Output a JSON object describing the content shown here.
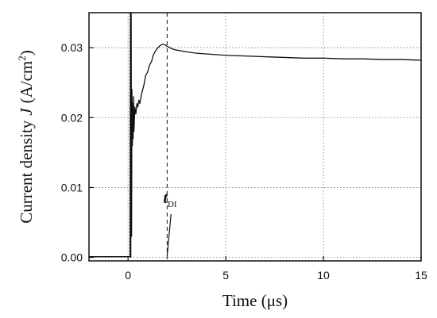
{
  "chart_data": {
    "type": "line",
    "title": "",
    "xlabel": "Time (μs)",
    "ylabel_prefix": "Current density",
    "ylabel_symbol": "J",
    "ylabel_unit_open": "(A/cm",
    "ylabel_unit_sup": "2",
    "ylabel_unit_close": ")",
    "xlim": [
      -2,
      15
    ],
    "ylim": [
      -0.0005,
      0.035
    ],
    "grid": true,
    "x_ticks": [
      0,
      5,
      10,
      15
    ],
    "x_tick_labels": [
      "0",
      "5",
      "10",
      "15"
    ],
    "y_ticks": [
      0.0,
      0.01,
      0.02,
      0.03
    ],
    "y_tick_labels": [
      "0.00",
      "0.01",
      "0.02",
      "0.03"
    ],
    "series": [
      {
        "color": "#111111",
        "x": [
          -2.0,
          -1.0,
          0.0,
          0.05,
          0.1,
          0.12,
          0.14,
          0.16,
          0.18,
          0.2,
          0.22,
          0.24,
          0.26,
          0.28,
          0.3,
          0.35,
          0.4,
          0.45,
          0.5,
          0.55,
          0.6,
          0.7,
          0.8,
          0.9,
          1.0,
          1.1,
          1.2,
          1.3,
          1.4,
          1.5,
          1.6,
          1.7,
          1.8,
          1.9,
          2.0,
          2.2,
          2.4,
          2.6,
          2.8,
          3.0,
          3.5,
          4.0,
          4.5,
          5.0,
          6.0,
          7.0,
          8.0,
          9.0,
          10.0,
          11.0,
          12.0,
          13.0,
          14.0,
          15.0
        ],
        "y": [
          0.0001,
          0.0001,
          0.0001,
          0.0001,
          0.0001,
          0.035,
          0.0,
          0.035,
          0.003,
          0.024,
          0.016,
          0.022,
          0.017,
          0.023,
          0.018,
          0.0215,
          0.0205,
          0.022,
          0.0215,
          0.0225,
          0.022,
          0.0235,
          0.0245,
          0.026,
          0.0265,
          0.0275,
          0.028,
          0.029,
          0.0295,
          0.0299,
          0.0302,
          0.0304,
          0.0305,
          0.0304,
          0.0302,
          0.0299,
          0.0297,
          0.0296,
          0.0295,
          0.0294,
          0.0292,
          0.0291,
          0.029,
          0.0289,
          0.0288,
          0.0287,
          0.0286,
          0.0285,
          0.0285,
          0.0284,
          0.0284,
          0.0283,
          0.0283,
          0.0282
        ]
      }
    ],
    "reference_line": {
      "x": 2.0,
      "style": "dashed"
    },
    "annotation": {
      "symbol": "t",
      "subscript": "DI",
      "text_x": 1.8,
      "text_y": 0.0078,
      "arrow_from": [
        2.2,
        0.0062
      ],
      "arrow_to": [
        2.0,
        0.0
      ]
    }
  }
}
